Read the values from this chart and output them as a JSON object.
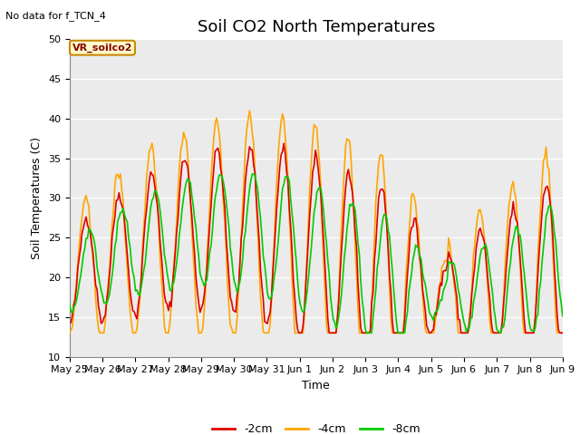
{
  "title": "Soil CO2 North Temperatures",
  "subtitle": "No data for f_TCN_4",
  "xlabel": "Time",
  "ylabel": "Soil Temperatures (C)",
  "ylim": [
    10,
    50
  ],
  "yticks": [
    10,
    15,
    20,
    25,
    30,
    35,
    40,
    45,
    50
  ],
  "legend_label": "VR_soilco2",
  "series_labels": [
    "-2cm",
    "-4cm",
    "-8cm"
  ],
  "series_colors": [
    "#dd0000",
    "#ffa500",
    "#00cc00"
  ],
  "plot_bg_color": "#ebebeb",
  "fig_bg_color": "#ffffff",
  "x_tick_labels": [
    "May 25",
    "May 26",
    "May 27",
    "May 28",
    "May 29",
    "May 30",
    "May 31",
    "Jun 1",
    "Jun 2",
    "Jun 3",
    "Jun 4",
    "Jun 5",
    "Jun 6",
    "Jun 7",
    "Jun 8",
    "Jun 9"
  ],
  "title_fontsize": 13,
  "label_fontsize": 9,
  "tick_fontsize": 8,
  "linewidth": 1.2
}
